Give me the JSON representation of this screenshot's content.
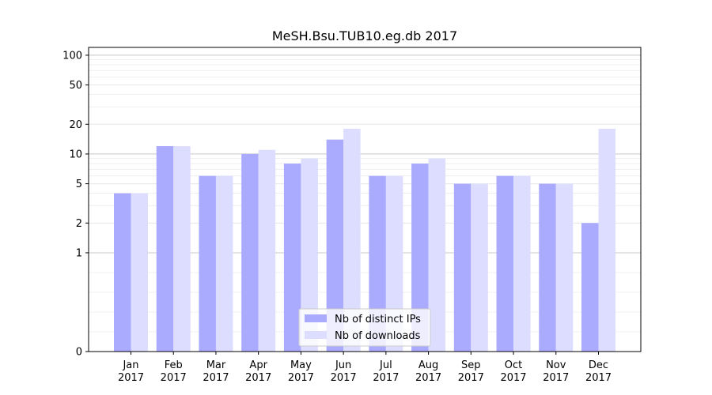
{
  "chart_data": {
    "type": "bar",
    "title": "MeSH.Bsu.TUB10.eg.db 2017",
    "xlabel": "",
    "ylabel": "",
    "y_scale": "symlog",
    "ylim": [
      0,
      120
    ],
    "y_ticks": [
      0,
      1,
      2,
      5,
      10,
      20,
      50,
      100
    ],
    "grid": true,
    "legend_position": "bottom-center",
    "categories": [
      {
        "month": "Jan",
        "year": "2017"
      },
      {
        "month": "Feb",
        "year": "2017"
      },
      {
        "month": "Mar",
        "year": "2017"
      },
      {
        "month": "Apr",
        "year": "2017"
      },
      {
        "month": "May",
        "year": "2017"
      },
      {
        "month": "Jun",
        "year": "2017"
      },
      {
        "month": "Jul",
        "year": "2017"
      },
      {
        "month": "Aug",
        "year": "2017"
      },
      {
        "month": "Sep",
        "year": "2017"
      },
      {
        "month": "Oct",
        "year": "2017"
      },
      {
        "month": "Nov",
        "year": "2017"
      },
      {
        "month": "Dec",
        "year": "2017"
      }
    ],
    "series": [
      {
        "name": "Nb of distinct IPs",
        "color": "#aaaaff",
        "values": [
          4,
          12,
          6,
          10,
          8,
          14,
          6,
          8,
          5,
          6,
          5,
          2
        ]
      },
      {
        "name": "Nb of downloads",
        "color": "#ddddff",
        "values": [
          4,
          12,
          6,
          11,
          9,
          18,
          6,
          9,
          5,
          6,
          5,
          18
        ]
      }
    ]
  }
}
